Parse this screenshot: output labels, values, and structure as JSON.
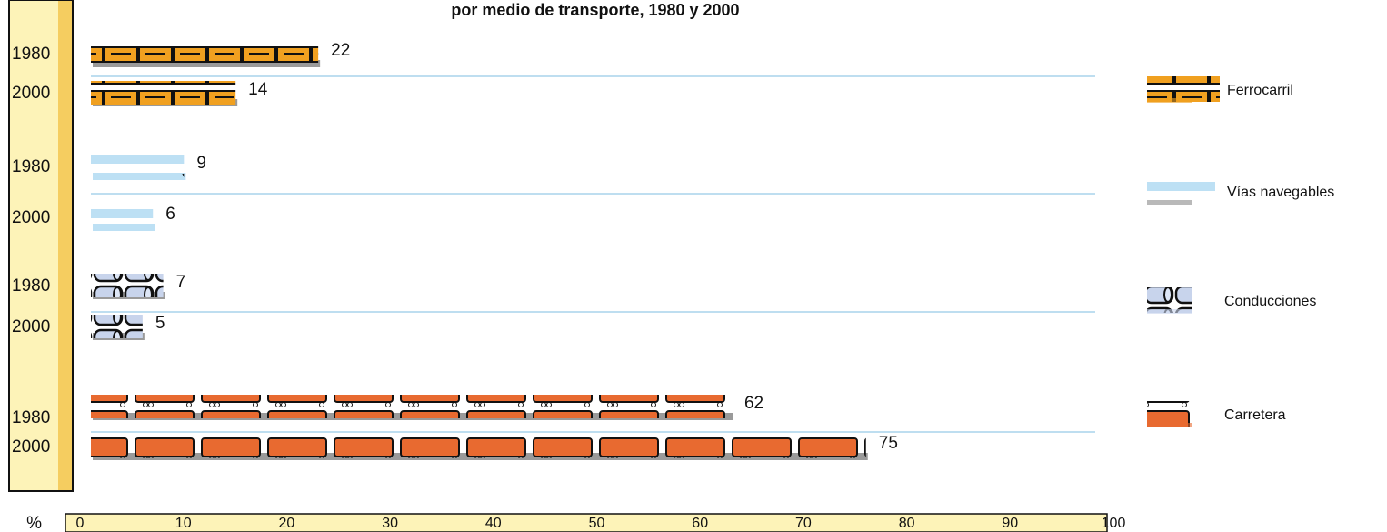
{
  "chart_data": {
    "type": "pictograph-bar",
    "title": "por medio de transporte, 1980 y 2000",
    "x_label": "%",
    "categories": [
      "Ferrocarril",
      "Vías navegables",
      "Conducciones",
      "Carretera"
    ],
    "colors": [
      "#f0a020",
      "#8a8a8a",
      "#c8d4ec",
      "#e86a30"
    ],
    "series": [
      {
        "name": "1980",
        "values": [
          22,
          9,
          7,
          62
        ]
      },
      {
        "name": "2000",
        "values": [
          14,
          6,
          5,
          75
        ]
      }
    ],
    "xlim": [
      0,
      100
    ],
    "xticks": [
      0,
      10,
      20,
      30,
      40,
      50,
      60,
      70,
      80,
      90,
      100
    ]
  }
}
